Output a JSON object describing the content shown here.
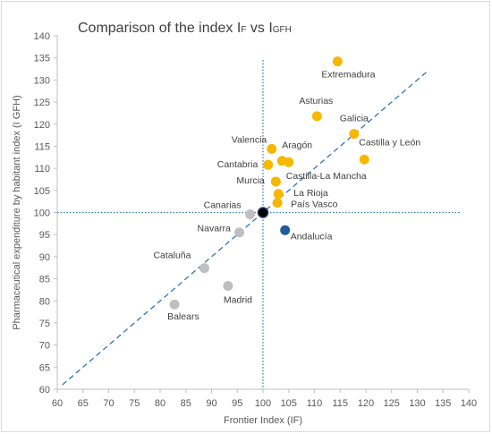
{
  "chart_data": {
    "type": "scatter",
    "title": "Comparison of the index IF vs IGFH",
    "title_parts": {
      "pre": "Comparison of the index ",
      "a_main": "I",
      "a_sub": "F",
      "mid": " vs ",
      "b_main": "I",
      "b_sub": "GFH"
    },
    "xlabel": "Frontier Index (IF)",
    "ylabel": "Pharmaceutical expenditure by habitant index (I GFH)",
    "xlim": [
      60,
      140
    ],
    "ylim": [
      60,
      140
    ],
    "xticks": [
      60,
      65,
      70,
      75,
      80,
      85,
      90,
      95,
      100,
      105,
      110,
      115,
      120,
      125,
      130,
      135,
      140
    ],
    "yticks": [
      60,
      65,
      70,
      75,
      80,
      85,
      90,
      95,
      100,
      105,
      110,
      115,
      120,
      125,
      130,
      135,
      140
    ],
    "grid": false,
    "legend": "none",
    "reference_lines": {
      "x": 100,
      "y": 100,
      "diagonal_from": [
        61,
        61
      ],
      "diagonal_to": [
        132,
        132
      ]
    },
    "colors": {
      "above": "#f5b800",
      "below": "#bfbfbf",
      "highlight": "#1f5c99",
      "reference": "#000000",
      "lines": "#2e75b6",
      "axis": "#bfbfbf"
    },
    "points": [
      {
        "name": "Extremadura",
        "x": 114.5,
        "y": 134.2,
        "group": "above"
      },
      {
        "name": "Asturias",
        "x": 110.5,
        "y": 121.8,
        "group": "above"
      },
      {
        "name": "Galicia",
        "x": 117.7,
        "y": 117.8,
        "group": "above"
      },
      {
        "name": "Castilla y León",
        "x": 119.7,
        "y": 112.0,
        "group": "above"
      },
      {
        "name": "Valencia",
        "x": 101.7,
        "y": 114.4,
        "group": "above"
      },
      {
        "name": "Aragón",
        "x": 103.7,
        "y": 111.7,
        "group": "above"
      },
      {
        "name": "Castilla-La Mancha",
        "x": 105.0,
        "y": 111.4,
        "group": "above"
      },
      {
        "name": "Cantabria",
        "x": 101.0,
        "y": 110.8,
        "group": "above"
      },
      {
        "name": "Murcia",
        "x": 102.5,
        "y": 107.0,
        "group": "above"
      },
      {
        "name": "La Rioja",
        "x": 103.0,
        "y": 104.2,
        "group": "above"
      },
      {
        "name": "País Vasco",
        "x": 102.8,
        "y": 102.2,
        "group": "above"
      },
      {
        "name": "",
        "x": 100.0,
        "y": 100.0,
        "group": "reference"
      },
      {
        "name": "Canarias",
        "x": 97.5,
        "y": 99.6,
        "group": "below"
      },
      {
        "name": "Andalucía",
        "x": 104.3,
        "y": 96.0,
        "group": "highlight"
      },
      {
        "name": "Navarra",
        "x": 95.4,
        "y": 95.5,
        "group": "below"
      },
      {
        "name": "Cataluña",
        "x": 88.6,
        "y": 87.4,
        "group": "below"
      },
      {
        "name": "Madrid",
        "x": 93.2,
        "y": 83.4,
        "group": "below"
      },
      {
        "name": "Balears",
        "x": 82.8,
        "y": 79.2,
        "group": "below"
      }
    ]
  }
}
